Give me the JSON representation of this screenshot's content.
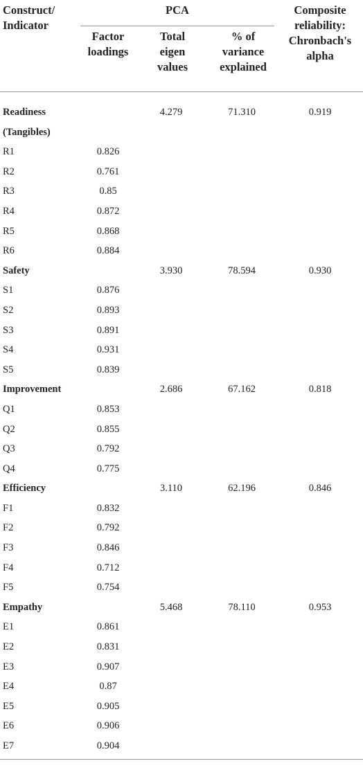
{
  "header": {
    "construct": [
      "Construct/",
      "Indicator"
    ],
    "group": "PCA",
    "loadings": [
      "Factor",
      "loadings"
    ],
    "eigen": [
      "Total",
      "eigen",
      "values"
    ],
    "variance": [
      "% of",
      "variance",
      "explained"
    ],
    "alpha": [
      "Composite",
      "reliability:",
      "Chronbach's",
      "alpha"
    ]
  },
  "rows": [
    {
      "label": "Readiness (Tangibles)",
      "eigen": "4.279",
      "variance": "71.310",
      "alpha": "0.919"
    },
    {
      "label": "R1",
      "loading": "0.826"
    },
    {
      "label": "R2",
      "loading": "0.761"
    },
    {
      "label": "R3",
      "loading": "0.85"
    },
    {
      "label": "R4",
      "loading": "0.872"
    },
    {
      "label": "R5",
      "loading": "0.868"
    },
    {
      "label": "R6",
      "loading": "0.884"
    },
    {
      "label": "Safety",
      "eigen": "3.930",
      "variance": "78.594",
      "alpha": "0.930"
    },
    {
      "label": "S1",
      "loading": "0.876"
    },
    {
      "label": "S2",
      "loading": "0.893"
    },
    {
      "label": "S3",
      "loading": "0.891"
    },
    {
      "label": "S4",
      "loading": "0.931"
    },
    {
      "label": "S5",
      "loading": "0.839"
    },
    {
      "label": "Improvement",
      "eigen": "2.686",
      "variance": "67.162",
      "alpha": "0.818"
    },
    {
      "label": "Q1",
      "loading": "0.853"
    },
    {
      "label": "Q2",
      "loading": "0.855"
    },
    {
      "label": "Q3",
      "loading": "0.792"
    },
    {
      "label": "Q4",
      "loading": "0.775"
    },
    {
      "label": "Efficiency",
      "eigen": "3.110",
      "variance": "62.196",
      "alpha": "0.846"
    },
    {
      "label": "F1",
      "loading": "0.832"
    },
    {
      "label": "F2",
      "loading": "0.792"
    },
    {
      "label": "F3",
      "loading": "0.846"
    },
    {
      "label": "F4",
      "loading": "0.712"
    },
    {
      "label": "F5",
      "loading": "0.754"
    },
    {
      "label": "Empathy",
      "eigen": "5.468",
      "variance": "78.110",
      "alpha": "0.953"
    },
    {
      "label": "E1",
      "loading": "0.861"
    },
    {
      "label": "E2",
      "loading": "0.831"
    },
    {
      "label": "E3",
      "loading": "0.907"
    },
    {
      "label": "E4",
      "loading": "0.87"
    },
    {
      "label": "E5",
      "loading": "0.905"
    },
    {
      "label": "E6",
      "loading": "0.906"
    },
    {
      "label": "E7",
      "loading": "0.904"
    }
  ]
}
